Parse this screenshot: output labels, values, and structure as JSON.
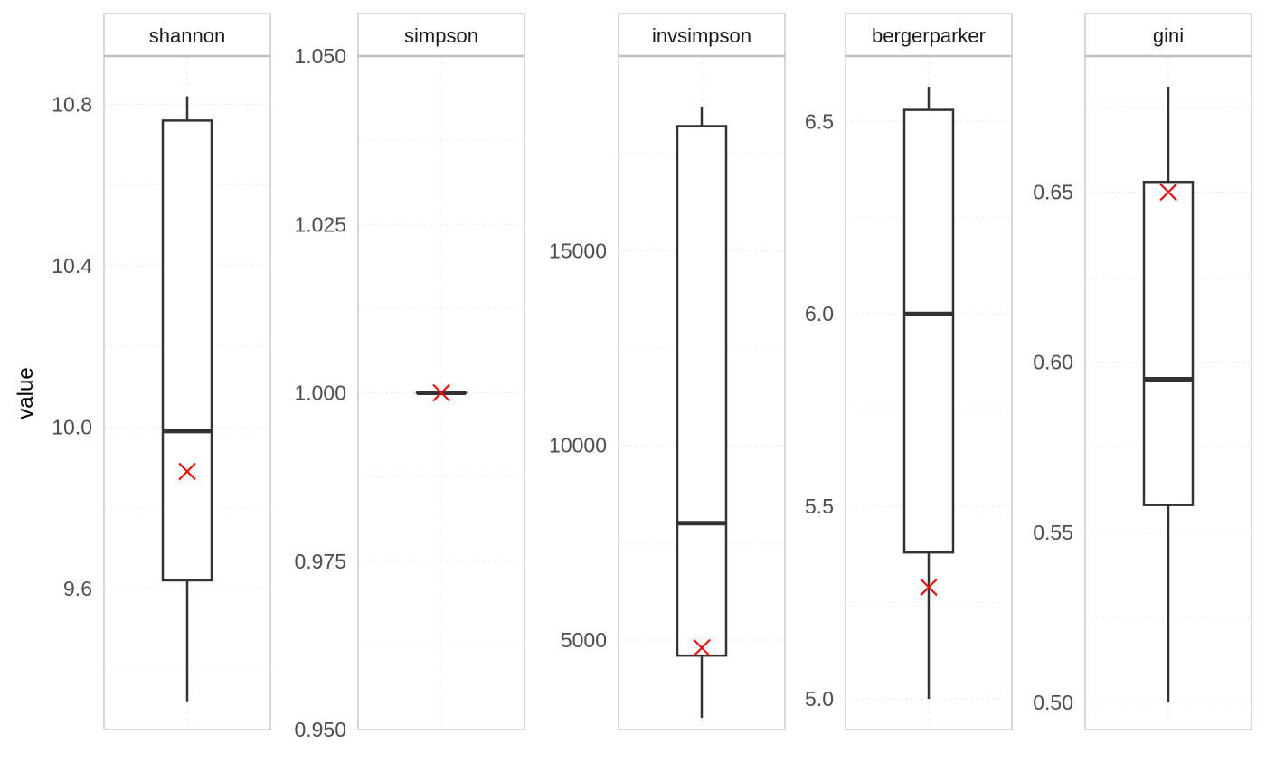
{
  "chart_data": {
    "type": "boxplot",
    "ylabel": "value",
    "grid": true,
    "colors": {
      "box": "#333333",
      "mean_marker": "#ff0000",
      "frame": "#bfbfbf",
      "grid": "#ebebeb"
    },
    "panels": [
      {
        "name": "shannon",
        "ylim": [
          9.25,
          10.92
        ],
        "ticks": [
          9.6,
          10.0,
          10.4,
          10.8
        ],
        "tick_labels": [
          "9.6",
          "10.0",
          "10.4",
          "10.8"
        ],
        "box": {
          "whisker_low": 9.32,
          "q1": 9.62,
          "median": 9.99,
          "q3": 10.76,
          "whisker_high": 10.82
        },
        "mean": 9.89
      },
      {
        "name": "simpson",
        "ylim": [
          0.95,
          1.05
        ],
        "ticks": [
          0.95,
          0.975,
          1.0,
          1.025,
          1.05
        ],
        "tick_labels": [
          "0.950",
          "0.975",
          "1.000",
          "1.025",
          "1.050"
        ],
        "box": {
          "whisker_low": 1.0,
          "q1": 1.0,
          "median": 1.0,
          "q3": 1.0,
          "whisker_high": 1.0
        },
        "mean": 1.0
      },
      {
        "name": "invsimpson",
        "ylim": [
          2700,
          20000
        ],
        "ticks": [
          5000,
          10000,
          15000
        ],
        "tick_labels": [
          "5000",
          "10000",
          "15000"
        ],
        "box": {
          "whisker_low": 3000,
          "q1": 4600,
          "median": 8000,
          "q3": 18200,
          "whisker_high": 18700
        },
        "mean": 4800
      },
      {
        "name": "bergerparker",
        "ylim": [
          4.92,
          6.67
        ],
        "ticks": [
          5.0,
          5.5,
          6.0,
          6.5
        ],
        "tick_labels": [
          "5.0",
          "5.5",
          "6.0",
          "6.5"
        ],
        "box": {
          "whisker_low": 5.0,
          "q1": 5.38,
          "median": 6.0,
          "q3": 6.53,
          "whisker_high": 6.59
        },
        "mean": 5.29
      },
      {
        "name": "gini",
        "ylim": [
          0.492,
          0.69
        ],
        "ticks": [
          0.5,
          0.55,
          0.6,
          0.65
        ],
        "tick_labels": [
          "0.50",
          "0.55",
          "0.60",
          "0.65"
        ],
        "box": {
          "whisker_low": 0.5,
          "q1": 0.558,
          "median": 0.595,
          "q3": 0.653,
          "whisker_high": 0.681
        },
        "mean": 0.65
      }
    ]
  }
}
